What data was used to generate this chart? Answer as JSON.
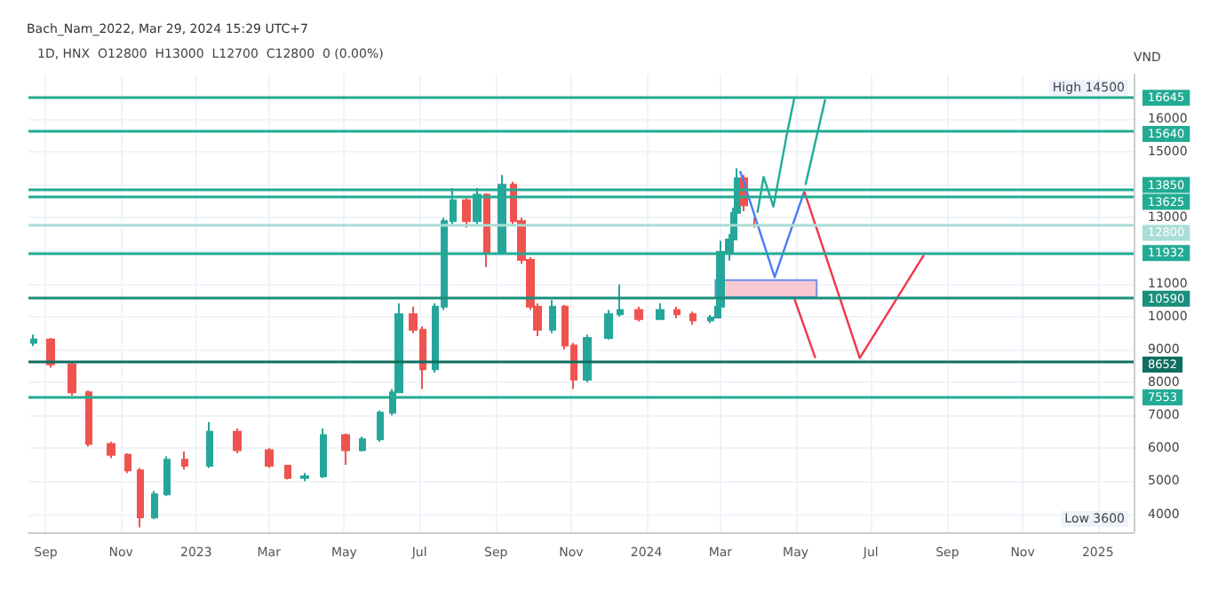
{
  "chart_data": {
    "type": "candlestick",
    "subtitle": "Bach_Nam_2022, Mar 29, 2024 15:29 UTC+7",
    "title": "1D, HNX  O12800  H13000  L12700  C12800  0 (0.00%)",
    "ylabel": "VND",
    "xlim": [
      "2022-08-18",
      "2025-01-30"
    ],
    "xticks": [
      {
        "value": "2022-09-01",
        "label": "Sep"
      },
      {
        "value": "2022-11-01",
        "label": "Nov"
      },
      {
        "value": "2023-01-01",
        "label": "2023"
      },
      {
        "value": "2023-03-01",
        "label": "Mar"
      },
      {
        "value": "2023-05-01",
        "label": "May"
      },
      {
        "value": "2023-07-01",
        "label": "Jul"
      },
      {
        "value": "2023-09-01",
        "label": "Sep"
      },
      {
        "value": "2023-11-01",
        "label": "Nov"
      },
      {
        "value": "2024-01-01",
        "label": "2024"
      },
      {
        "value": "2024-03-01",
        "label": "Mar"
      },
      {
        "value": "2024-05-01",
        "label": "May"
      },
      {
        "value": "2024-07-01",
        "label": "Jul"
      },
      {
        "value": "2024-09-01",
        "label": "Sep"
      },
      {
        "value": "2024-11-01",
        "label": "Nov"
      },
      {
        "value": "2025-01-01",
        "label": "2025"
      }
    ],
    "ylim": [
      3450,
      17350
    ],
    "yticks": [
      4000,
      5000,
      6000,
      7000,
      8000,
      9000,
      10000,
      11000,
      {
        "value": 12000,
        "label": null
      },
      13000,
      {
        "value": 14000,
        "label": null
      },
      15000,
      16000
    ],
    "grid": true,
    "marker": "none",
    "series": [
      {
        "type": "candlestick",
        "x": [
          "2022-08-22",
          "2022-09-05",
          "2022-09-22",
          "2022-10-06",
          "2022-10-24",
          "2022-11-07",
          "2022-11-17",
          "2022-11-28",
          "2022-12-08",
          "2022-12-23",
          "2023-01-12",
          "2023-02-03",
          "2023-03-01",
          "2023-03-16",
          "2023-03-30",
          "2023-04-14",
          "2023-05-02",
          "2023-05-16",
          "2023-05-30",
          "2023-06-09",
          "2023-06-14",
          "2023-06-26",
          "2023-07-04",
          "2023-07-14",
          "2023-07-21",
          "2023-07-28",
          "2023-08-08",
          "2023-08-17",
          "2023-08-25",
          "2023-09-06",
          "2023-09-15",
          "2023-09-22",
          "2023-09-29",
          "2023-10-05",
          "2023-10-17",
          "2023-10-27",
          "2023-11-03",
          "2023-11-14",
          "2023-12-01",
          "2023-12-11",
          "2023-12-26",
          "2024-01-12",
          "2024-01-26",
          "2024-02-08",
          "2024-02-22",
          "2024-02-28",
          "2024-03-01",
          "2024-03-08",
          "2024-03-12",
          "2024-03-15",
          "2024-03-20",
          "2024-03-29"
        ],
        "ohlc": [
          [
            9200,
            9450,
            9100,
            9300
          ],
          [
            9300,
            9350,
            8450,
            8550
          ],
          [
            8550,
            8600,
            7600,
            7700
          ],
          [
            7700,
            7750,
            6050,
            6130
          ],
          [
            6130,
            6200,
            5700,
            5800
          ],
          [
            5800,
            5850,
            5250,
            5330
          ],
          [
            5330,
            5400,
            3600,
            3900
          ],
          [
            3900,
            4700,
            3850,
            4600
          ],
          [
            4600,
            5750,
            4550,
            5650
          ],
          [
            5650,
            5900,
            5350,
            5470
          ],
          [
            5470,
            6800,
            5400,
            6500
          ],
          [
            6500,
            6600,
            5850,
            5940
          ],
          [
            5940,
            6000,
            5400,
            5470
          ],
          [
            5470,
            5500,
            5050,
            5100
          ],
          [
            5100,
            5250,
            5000,
            5150
          ],
          [
            5150,
            6600,
            5100,
            6400
          ],
          [
            6400,
            6450,
            5500,
            5940
          ],
          [
            5940,
            6350,
            5900,
            6270
          ],
          [
            6270,
            7150,
            6200,
            7080
          ],
          [
            7080,
            7800,
            7000,
            7700
          ],
          [
            7700,
            10400,
            7700,
            10070
          ],
          [
            10070,
            10300,
            9500,
            9600
          ],
          [
            9600,
            9700,
            7800,
            8400
          ],
          [
            8400,
            10400,
            8300,
            10300
          ],
          [
            10300,
            13000,
            10200,
            12900
          ],
          [
            12900,
            13900,
            12800,
            13530
          ],
          [
            13530,
            13600,
            12700,
            12900
          ],
          [
            12900,
            13900,
            12800,
            13700
          ],
          [
            13700,
            13750,
            11500,
            11960
          ],
          [
            11960,
            14300,
            11900,
            14000
          ],
          [
            14000,
            14100,
            12800,
            12900
          ],
          [
            12900,
            13000,
            11600,
            11720
          ],
          [
            11720,
            11800,
            10200,
            10300
          ],
          [
            10300,
            10400,
            9400,
            9600
          ],
          [
            9600,
            10500,
            9500,
            10300
          ],
          [
            10300,
            10350,
            9000,
            9120
          ],
          [
            9120,
            9200,
            7800,
            8080
          ],
          [
            8080,
            9450,
            8000,
            9350
          ],
          [
            9350,
            10200,
            9300,
            10070
          ],
          [
            10070,
            10970,
            10000,
            10200
          ],
          [
            10200,
            10300,
            9850,
            9920
          ],
          [
            9920,
            10400,
            9900,
            10200
          ],
          [
            10200,
            10300,
            9950,
            10070
          ],
          [
            10070,
            10150,
            9750,
            9880
          ],
          [
            9880,
            10050,
            9800,
            9970
          ],
          [
            9970,
            10350,
            9950,
            10300
          ],
          [
            10300,
            12300,
            10300,
            11960
          ],
          [
            11960,
            12500,
            11700,
            12340
          ],
          [
            12340,
            13300,
            12200,
            13150
          ],
          [
            13150,
            14500,
            13100,
            14200
          ],
          [
            14200,
            14300,
            13200,
            13380
          ],
          [
            12800,
            13000,
            12700,
            12800
          ]
        ]
      },
      {
        "type": "area",
        "color": "#f7c9d3",
        "x": [
          "2024-02-26",
          "2024-05-18"
        ],
        "values": [
          null,
          null
        ],
        "lower": [
          10590,
          10590
        ],
        "upper": [
          11110,
          11110
        ]
      },
      {
        "type": "line",
        "color": "#22ab94",
        "x": [
          "2024-03-31",
          "2024-04-05",
          "2024-04-13",
          "2024-04-24",
          "2024-04-30"
        ],
        "values": [
          13150,
          14240,
          13340,
          15560,
          16650
        ]
      },
      {
        "type": "line",
        "color": "#22ab94",
        "x": [
          "2024-05-09",
          "2024-05-25"
        ],
        "values": [
          14000,
          16600
        ]
      },
      {
        "type": "line",
        "color": "#4a7bf7",
        "x": [
          "2024-03-17",
          "2024-04-14",
          "2024-05-08"
        ],
        "values": [
          14420,
          11200,
          13800
        ]
      },
      {
        "type": "line",
        "color": "#f23645",
        "x": [
          "2024-05-08",
          "2024-06-22",
          "2024-08-13"
        ],
        "values": [
          13800,
          8740,
          11870
        ]
      },
      {
        "type": "line",
        "color": "#f23645",
        "x": [
          "2024-04-30",
          "2024-05-17"
        ],
        "values": [
          10540,
          8740
        ]
      }
    ],
    "ref_lines": [
      {
        "axis": "y",
        "value": 16645,
        "label": "16645",
        "color": "#22ab94"
      },
      {
        "axis": "y",
        "value": 15640,
        "label": "15640",
        "color": "#22ab94"
      },
      {
        "axis": "y",
        "value": 13850,
        "label": "13850",
        "color": "#22ab94"
      },
      {
        "axis": "y",
        "value": 13625,
        "label": "13625",
        "color": "#22ab94"
      },
      {
        "axis": "y",
        "value": 12800,
        "label": "12800",
        "color": "#a9ddd5"
      },
      {
        "axis": "y",
        "value": 11932,
        "label": "11932",
        "color": "#22ab94"
      },
      {
        "axis": "y",
        "value": 10590,
        "label": "10590",
        "color": "#1a8f7c"
      },
      {
        "axis": "y",
        "value": 8652,
        "label": "8652",
        "color": "#0f6e60"
      },
      {
        "axis": "y",
        "value": 7553,
        "label": "7553",
        "color": "#22ab94"
      }
    ],
    "annotations": [
      "High 14500",
      "Low 3600"
    ]
  }
}
